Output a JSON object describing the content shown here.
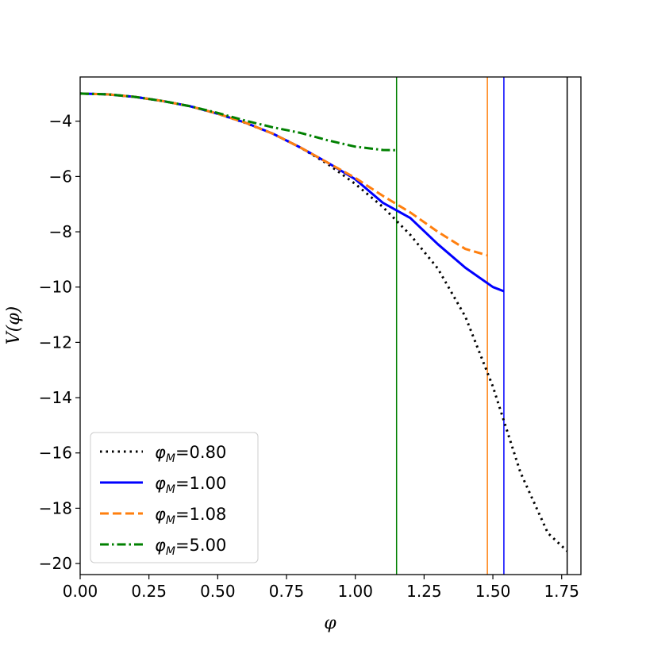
{
  "chart_data": {
    "type": "line",
    "title": "",
    "xlabel": "φ",
    "ylabel": "V(φ)",
    "xlim": [
      0.0,
      1.82
    ],
    "ylim": [
      -20.4,
      -2.4
    ],
    "xticks": [
      "0.00",
      "0.25",
      "0.50",
      "0.75",
      "1.00",
      "1.25",
      "1.50",
      "1.75"
    ],
    "yticks": [
      "−4",
      "−6",
      "−8",
      "−10",
      "−12",
      "−14",
      "−16",
      "−18",
      "−20"
    ],
    "legend_position": "lower-left",
    "grid": false,
    "series": [
      {
        "name": "φM=0.80",
        "color": "#000000",
        "dash": "dotted",
        "x": [
          0.0,
          0.1,
          0.2,
          0.3,
          0.4,
          0.5,
          0.6,
          0.7,
          0.8,
          0.9,
          1.0,
          1.1,
          1.2,
          1.3,
          1.4,
          1.5,
          1.6,
          1.7,
          1.77
        ],
        "y": [
          -3.0,
          -3.03,
          -3.12,
          -3.27,
          -3.46,
          -3.73,
          -4.06,
          -4.45,
          -4.95,
          -5.55,
          -6.27,
          -7.1,
          -8.11,
          -9.33,
          -11.07,
          -13.6,
          -16.7,
          -18.9,
          -19.55
        ]
      },
      {
        "name": "φM=1.00",
        "color": "#0000ff",
        "dash": "solid",
        "x": [
          0.0,
          0.1,
          0.2,
          0.3,
          0.4,
          0.5,
          0.6,
          0.7,
          0.8,
          0.9,
          1.0,
          1.1,
          1.2,
          1.3,
          1.4,
          1.5,
          1.54
        ],
        "y": [
          -3.0,
          -3.03,
          -3.12,
          -3.27,
          -3.46,
          -3.73,
          -4.05,
          -4.45,
          -4.95,
          -5.5,
          -6.1,
          -6.95,
          -7.5,
          -8.45,
          -9.3,
          -10.0,
          -10.15
        ]
      },
      {
        "name": "φM=1.08",
        "color": "#ff7f0e",
        "dash": "dashed",
        "x": [
          0.0,
          0.1,
          0.2,
          0.3,
          0.4,
          0.5,
          0.6,
          0.7,
          0.8,
          0.9,
          1.0,
          1.1,
          1.2,
          1.3,
          1.4,
          1.48
        ],
        "y": [
          -3.0,
          -3.03,
          -3.12,
          -3.27,
          -3.46,
          -3.73,
          -4.05,
          -4.45,
          -4.95,
          -5.5,
          -6.05,
          -6.7,
          -7.3,
          -8.0,
          -8.62,
          -8.85
        ]
      },
      {
        "name": "φM=5.00",
        "color": "#008000",
        "dash": "dashdot",
        "x": [
          0.0,
          0.1,
          0.2,
          0.3,
          0.4,
          0.5,
          0.6,
          0.7,
          0.8,
          0.9,
          1.0,
          1.1,
          1.15
        ],
        "y": [
          -3.0,
          -3.03,
          -3.12,
          -3.27,
          -3.46,
          -3.7,
          -3.98,
          -4.22,
          -4.42,
          -4.69,
          -4.92,
          -5.04,
          -5.05
        ]
      }
    ],
    "vertical_lines": [
      {
        "x": 1.15,
        "color": "#008000"
      },
      {
        "x": 1.48,
        "color": "#ff7f0e"
      },
      {
        "x": 1.54,
        "color": "#0000ff"
      },
      {
        "x": 1.77,
        "color": "#000000"
      }
    ]
  }
}
